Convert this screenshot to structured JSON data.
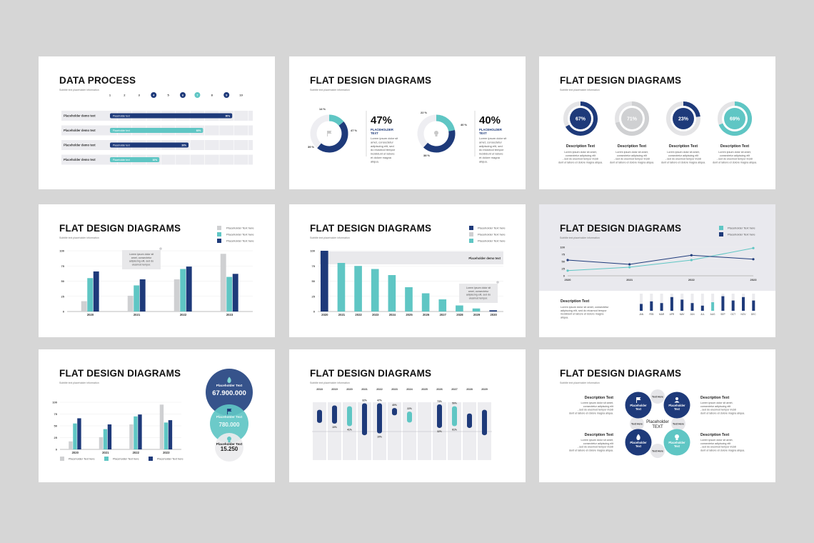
{
  "colors": {
    "navy": "#1e3a7a",
    "teal": "#5fc6c4",
    "gray": "#cfd0d2",
    "lightgray": "#eeeef2"
  },
  "slides": [
    {
      "id": 1,
      "title": "DATA PROCESS",
      "subtitle": "Subtitle text placeholder information",
      "chart_data": {
        "type": "bar",
        "title": "DATA PROCESS",
        "steps": [
          "1",
          "2",
          "3",
          "4",
          "5",
          "6",
          "7",
          "8",
          "9",
          "10"
        ],
        "highlighted_steps": [
          "4",
          "6",
          "7",
          "9"
        ],
        "rows": [
          {
            "label": "Placeholder demo text",
            "bar_text": "Placeholder text",
            "value_label": "90%",
            "start": 1,
            "end": 9,
            "color": "navy"
          },
          {
            "label": "Placeholder demo text",
            "bar_text": "Placeholder text",
            "value_label": "60%",
            "start": 1,
            "end": 7,
            "color": "teal"
          },
          {
            "label": "Placeholder demo text",
            "bar_text": "Placeholder text",
            "value_label": "30%",
            "start": 1,
            "end": 6,
            "color": "navy"
          },
          {
            "label": "Placeholder demo text",
            "bar_text": "Placeholder text",
            "value_label": "10%",
            "start": 1,
            "end": 4,
            "color": "teal"
          }
        ]
      }
    },
    {
      "id": 2,
      "title": "FLAT DESIGN DIAGRAMS",
      "subtitle": "Subtitle text placeholder information",
      "chart_data": [
        {
          "type": "pie",
          "slices": [
            {
              "label": "14 %",
              "value": 14,
              "color": "teal"
            },
            {
              "label": "47 %",
              "value": 47,
              "color": "navy"
            },
            {
              "label": "39 %",
              "value": 39,
              "color": "lightgray"
            }
          ],
          "big_value": "47%",
          "label": "PLACEHOLDER TEXT",
          "body": "Lorem ipsum dolor sit amet, consectetur adipiscing elit, sed do eiusmod tempor incididunt ut labore et dolore magna aliqua."
        },
        {
          "type": "pie",
          "slices": [
            {
              "label": "22 %",
              "value": 22,
              "color": "teal"
            },
            {
              "label": "40 %",
              "value": 40,
              "color": "navy"
            },
            {
              "label": "38 %",
              "value": 38,
              "color": "lightgray"
            }
          ],
          "big_value": "40%",
          "label": "PLACEHOLDER TEXT",
          "body": "Lorem ipsum dolor sit amet, consectetur adipiscing elit, sed do eiusmod tempor incididunt ut labore et dolore magna aliqua."
        }
      ]
    },
    {
      "id": 3,
      "title": "FLAT DESIGN DIAGRAMS",
      "subtitle": "Subtitle text placeholder information",
      "chart_data": {
        "type": "pie",
        "items": [
          {
            "value": 67,
            "label": "67%",
            "color": "navy",
            "title": "Description Text",
            "body": "Lorem ipsum dolor sit amet, consectetur adipiscing elit, sed do eiusmod tempor incididunt ut labore et dolore magna aliqua."
          },
          {
            "value": 71,
            "label": "71%",
            "color": "gray",
            "title": "Description Text",
            "body": "Lorem ipsum dolor sit amet, consectetur adipiscing elit, sed do eiusmod tempor incididunt ut labore et dolore magna aliqua."
          },
          {
            "value": 23,
            "label": "23%",
            "color": "navy",
            "title": "Description Text",
            "body": "Lorem ipsum dolor sit amet, consectetur adipiscing elit, sed do eiusmod tempor incididunt ut labore et dolore magna aliqua."
          },
          {
            "value": 69,
            "label": "69%",
            "color": "teal",
            "title": "Description Text",
            "body": "Lorem ipsum dolor sit amet, consectetur adipiscing elit, sed do eiusmod tempor incididunt ut labore et dolore magna aliqua."
          }
        ]
      }
    },
    {
      "id": 4,
      "title": "FLAT DESIGN DIAGRAMS",
      "subtitle": "Subtitle text placeholder information",
      "chart_data": {
        "type": "bar",
        "categories": [
          "2020",
          "2021",
          "2022",
          "2023"
        ],
        "y_ticks": [
          "0",
          "25",
          "50",
          "75",
          "100"
        ],
        "ylim": [
          0,
          100
        ],
        "series": [
          {
            "name": "Placeholder Text here",
            "color": "gray",
            "values": [
              17,
              26,
              53,
              95
            ]
          },
          {
            "name": "Placeholder Text here",
            "color": "teal",
            "values": [
              55,
              43,
              70,
              57
            ]
          },
          {
            "name": "Placeholder Text here",
            "color": "navy",
            "values": [
              66,
              53,
              74,
              62
            ]
          }
        ],
        "annotation": "Lorem ipsum dolor sit amet, consectetur adipiscing elit, sed do eiusmod tempor."
      }
    },
    {
      "id": 5,
      "title": "FLAT DESIGN DIAGRAMS",
      "subtitle": "Subtitle text placeholder information",
      "chart_data": {
        "type": "bar",
        "categories": [
          "2020",
          "2021",
          "2022",
          "2023",
          "2024",
          "2025",
          "2026",
          "2027",
          "2028",
          "2029",
          "2030"
        ],
        "values": [
          100,
          80,
          75,
          70,
          60,
          40,
          30,
          20,
          10,
          5,
          2
        ],
        "colors": [
          "navy",
          "teal",
          "teal",
          "teal",
          "teal",
          "teal",
          "teal",
          "teal",
          "teal",
          "teal",
          "navy"
        ],
        "y_ticks": [
          "0",
          "25",
          "50",
          "75",
          "100"
        ],
        "ylim": [
          0,
          100
        ],
        "legend": [
          "Placeholder Text here",
          "Placeholder Text here",
          "Placeholder Text here"
        ],
        "band_label": "Placeholder demo text",
        "annotation": "Lorem ipsum dolor sit amet, consectetur adipiscing elit, sed do eiusmod tempor."
      }
    },
    {
      "id": 6,
      "title": "FLAT DESIGN DIAGRAMS",
      "subtitle": "Subtitle text placeholder information",
      "chart_data": [
        {
          "type": "line",
          "x": [
            "2020",
            "2021",
            "2022",
            "2023"
          ],
          "y_ticks": [
            "0",
            "25",
            "50",
            "75",
            "100"
          ],
          "ylim": [
            0,
            100
          ],
          "series": [
            {
              "name": "Placeholder Text here",
              "color": "teal",
              "values": [
                18,
                30,
                55,
                97
              ]
            },
            {
              "name": "Placeholder Text here",
              "color": "navy",
              "values": [
                55,
                40,
                72,
                58
              ]
            }
          ]
        },
        {
          "type": "bar",
          "title": "Description Text",
          "body": "Lorem ipsum dolor sit amet, consectetur adipiscing elit, sed do eiusmod tempor incididunt ut labore et dolore magna aliqua.",
          "categories": [
            "JAN",
            "FEB",
            "MAR",
            "APR",
            "MAY",
            "JUN",
            "JUL",
            "AUG",
            "SEP",
            "OCT",
            "NOV",
            "DEC"
          ],
          "values": [
            40,
            55,
            45,
            80,
            65,
            45,
            30,
            50,
            85,
            60,
            80,
            60
          ],
          "colors": [
            "navy",
            "navy",
            "navy",
            "navy",
            "navy",
            "navy",
            "navy",
            "teal",
            "navy",
            "navy",
            "navy",
            "navy"
          ]
        }
      ]
    },
    {
      "id": 7,
      "title": "FLAT DESIGN DIAGRAMS",
      "subtitle": "Subtitle text placeholder information",
      "chart_data": {
        "type": "bar",
        "categories": [
          "2020",
          "2021",
          "2022",
          "2023"
        ],
        "y_ticks": [
          "0",
          "25",
          "50",
          "75",
          "100"
        ],
        "ylim": [
          0,
          100
        ],
        "series": [
          {
            "name": "Placeholder Text here",
            "color": "gray",
            "values": [
              17,
              26,
              53,
              95
            ]
          },
          {
            "name": "Placeholder Text here",
            "color": "teal",
            "values": [
              55,
              43,
              70,
              57
            ]
          },
          {
            "name": "Placeholder Text here",
            "color": "navy",
            "values": [
              66,
              53,
              74,
              62
            ]
          }
        ],
        "stats": [
          {
            "label": "Placeholder Text",
            "value": "67.900.000",
            "icon": "flame-icon",
            "color": "navy"
          },
          {
            "label": "Placeholder Text",
            "value": "780.000",
            "icon": "flag-icon",
            "color": "teal"
          },
          {
            "label": "Placeholder Text",
            "value": "15.250",
            "icon": "bulb-icon",
            "color": "lightgray"
          }
        ]
      }
    },
    {
      "id": 8,
      "title": "FLAT DESIGN DIAGRAMS",
      "subtitle": "Subtitle text placeholder information",
      "chart_data": {
        "type": "bar",
        "categories": [
          "2018",
          "2019",
          "2020",
          "2021",
          "2022",
          "2023",
          "2024",
          "2025",
          "2026",
          "2027",
          "2028",
          "2029"
        ],
        "ranges": [
          {
            "low": 1,
            "high": 60,
            "color": "navy"
          },
          {
            "low": 3,
            "high": 72,
            "low_label": "10%",
            "color": "navy"
          },
          {
            "low": 10,
            "high": 70,
            "low_label": "41%",
            "color": "teal"
          },
          {
            "low": 35,
            "high": 78,
            "high_label": "32%",
            "color": "navy"
          },
          {
            "low": 30,
            "high": 78,
            "high_label": "47%",
            "low_label": "10%",
            "color": "navy"
          },
          {
            "low": -20,
            "high": 65,
            "high_label": "40%",
            "color": "navy"
          },
          {
            "low": 0,
            "high": 55,
            "high_label": "22%",
            "color": "teal"
          },
          {
            "low": -15,
            "high": 40,
            "color": "navy"
          },
          {
            "low": 15,
            "high": 75,
            "high_label": "73%",
            "low_label": "32%",
            "color": "navy"
          },
          {
            "low": 10,
            "high": 70,
            "high_label": "50%",
            "low_label": "61%",
            "color": "teal"
          },
          {
            "low": 15,
            "high": 50,
            "color": "navy"
          },
          {
            "low": 35,
            "high": 60,
            "color": "navy"
          }
        ]
      }
    },
    {
      "id": 9,
      "title": "FLAT DESIGN DIAGRAMS",
      "subtitle": "Subtitle text placeholder information",
      "center_label": "Placeholder TEXT",
      "circles": [
        {
          "label": "Placeholder Text",
          "color": "navy",
          "icon": "flag-icon"
        },
        {
          "label": "Placeholder Text",
          "color": "navy",
          "icon": "user-icon"
        },
        {
          "label": "Placeholder Text",
          "color": "navy",
          "icon": "flame-icon"
        },
        {
          "label": "Placeholder Text",
          "color": "teal",
          "icon": "bulb-icon"
        }
      ],
      "connectors": [
        "Text Here",
        "Text Here",
        "Text Here",
        "Text Here"
      ],
      "descriptions": [
        {
          "title": "Description Text",
          "body": "Lorem ipsum dolor sit amet, consectetur adipiscing elit, sed do eiusmod tempor incididunt ut labore et dolore magna aliqua."
        },
        {
          "title": "Description Text",
          "body": "Lorem ipsum dolor sit amet, consectetur adipiscing elit, sed do eiusmod tempor incididunt ut labore et dolore magna aliqua."
        },
        {
          "title": "Description Text",
          "body": "Lorem ipsum dolor sit amet, consectetur adipiscing elit, sed do eiusmod tempor incididunt ut labore et dolore magna aliqua."
        },
        {
          "title": "Description Text",
          "body": "Lorem ipsum dolor sit amet, consectetur adipiscing elit, sed do eiusmod tempor incididunt ut labore et dolore magna aliqua."
        }
      ]
    }
  ]
}
